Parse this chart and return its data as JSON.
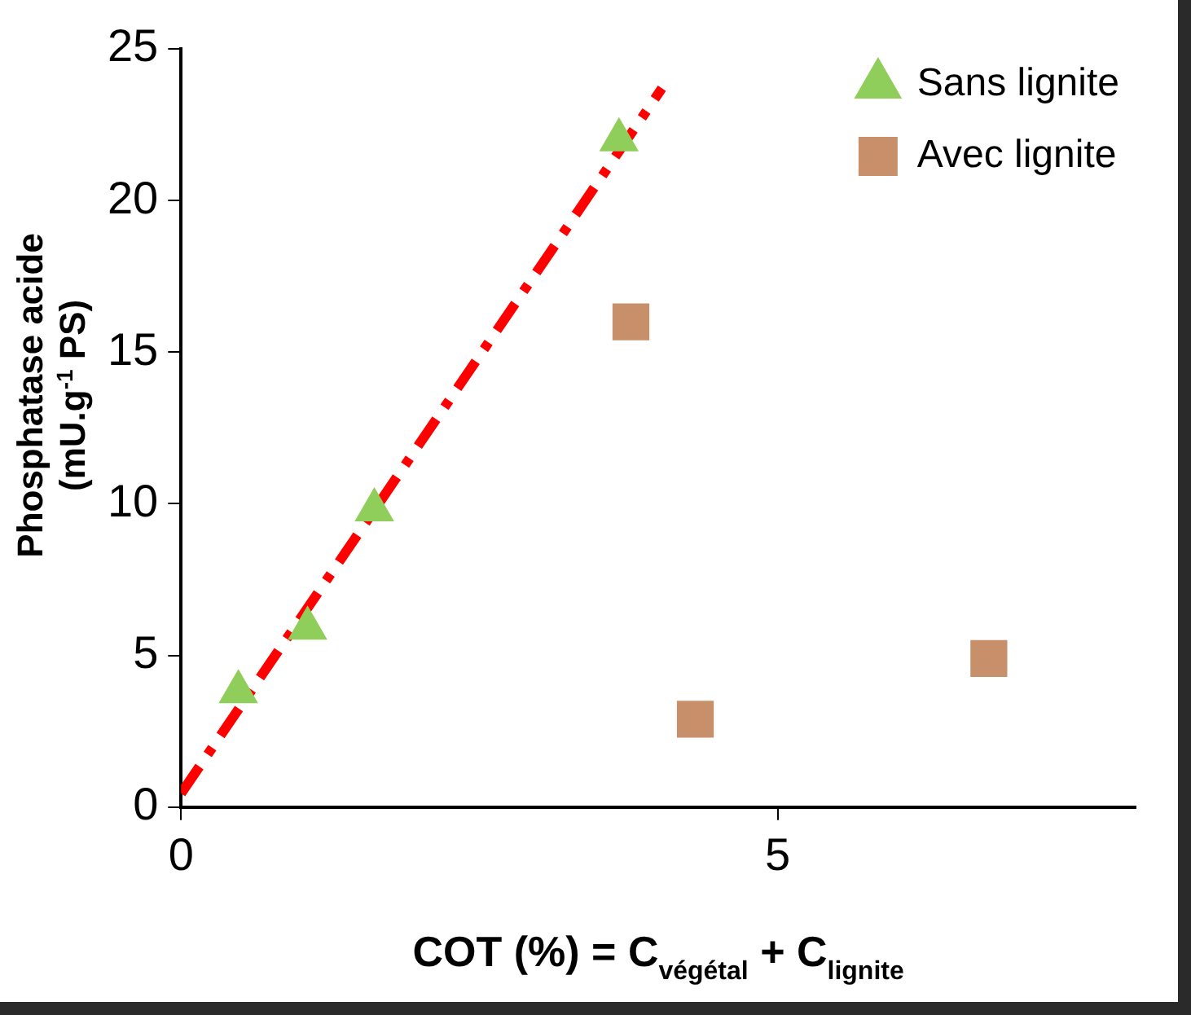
{
  "chart_data": {
    "type": "scatter",
    "xlabel": "COT (%) = C$_{végétal}$ + C$_{lignite}$",
    "ylabel": "Phosphatase acide\n(mU.g$^{-1}$ PS)",
    "xlim": [
      0,
      8
    ],
    "xticks": [
      0,
      5
    ],
    "ylim": [
      0,
      25
    ],
    "yticks": [
      0,
      5,
      10,
      15,
      20,
      25
    ],
    "grid": false,
    "legend": "top right",
    "series": [
      {
        "name": "Sans lignite",
        "color": "#8fce5a",
        "marker": "triangle",
        "x": [
          0.48,
          1.06,
          1.62,
          3.67
        ],
        "values": [
          3.8,
          5.9,
          9.8,
          22.0
        ]
      },
      {
        "name": "Avec lignite",
        "color": "#c8906a",
        "marker": "square",
        "x": [
          3.77,
          4.31,
          6.77
        ],
        "values": [
          16.0,
          2.9,
          4.9
        ]
      },
      {
        "type": "line",
        "color": "#ff0000",
        "line_style": "dashdot",
        "marker": "none",
        "x": [
          0,
          4.03
        ],
        "values": [
          0.45,
          23.7
        ]
      }
    ]
  }
}
